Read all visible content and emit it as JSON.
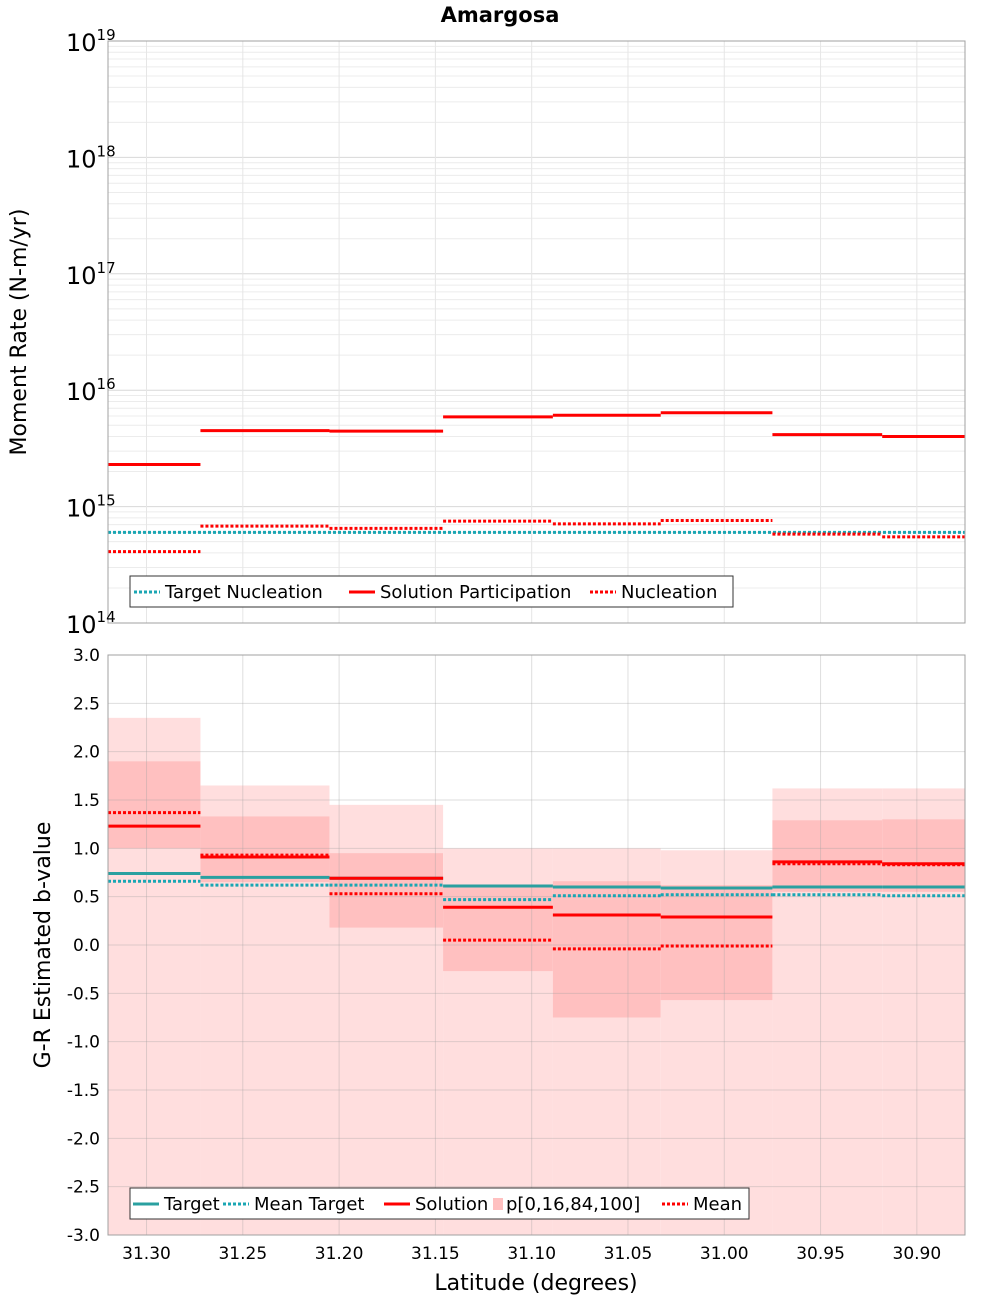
{
  "chart_data": [
    {
      "type": "line",
      "title": "Amargosa",
      "ylabel": "Moment Rate (N-m/yr)",
      "yscale": "log",
      "ylim": [
        100000000000000.0,
        1e+19
      ],
      "xlim": [
        31.32,
        30.875
      ],
      "x_reversed": true,
      "y_tick_labels": [
        {
          "base": "10",
          "exp": "14",
          "value": 100000000000000.0
        },
        {
          "base": "10",
          "exp": "15",
          "value": 1000000000000000.0
        },
        {
          "base": "10",
          "exp": "16",
          "value": 1e+16
        },
        {
          "base": "10",
          "exp": "17",
          "value": 1e+17
        },
        {
          "base": "10",
          "exp": "18",
          "value": 1e+18
        },
        {
          "base": "10",
          "exp": "19",
          "value": 1e+19
        }
      ],
      "grid": true,
      "legend_position": "bottom-left",
      "series": [
        {
          "name": "Target Nucleation",
          "color": "#1aa6b3",
          "style": "dotted",
          "segments": [
            [
              31.32,
              30.875,
              600000000000000.0
            ]
          ]
        },
        {
          "name": "Solution Participation",
          "color": "#ff0000",
          "style": "solid",
          "segments": [
            [
              31.32,
              31.272,
              2300000000000000.0
            ],
            [
              31.272,
              31.205,
              4500000000000000.0
            ],
            [
              31.205,
              31.146,
              4450000000000000.0
            ],
            [
              31.146,
              31.089,
              5900000000000000.0
            ],
            [
              31.089,
              31.033,
              6100000000000000.0
            ],
            [
              31.033,
              30.975,
              6400000000000000.0
            ],
            [
              30.975,
              30.918,
              4150000000000000.0
            ],
            [
              30.918,
              30.875,
              4000000000000000.0
            ]
          ]
        },
        {
          "name": "Nucleation",
          "color": "#ff0000",
          "style": "dotted",
          "segments": [
            [
              31.32,
              31.272,
              410000000000000.0
            ],
            [
              31.272,
              31.205,
              680000000000000.0
            ],
            [
              31.205,
              31.146,
              650000000000000.0
            ],
            [
              31.146,
              31.089,
              750000000000000.0
            ],
            [
              31.089,
              31.033,
              710000000000000.0
            ],
            [
              31.033,
              30.975,
              760000000000000.0
            ],
            [
              30.975,
              30.918,
              580000000000000.0
            ],
            [
              30.918,
              30.875,
              550000000000000.0
            ]
          ]
        }
      ]
    },
    {
      "type": "line",
      "title": "",
      "xlabel": "Latitude (degrees)",
      "ylabel": "G-R Estimated b-value",
      "ylim": [
        -3.0,
        3.0
      ],
      "xlim": [
        31.32,
        30.875
      ],
      "x_reversed": true,
      "x_ticks": [
        31.3,
        31.25,
        31.2,
        31.15,
        31.1,
        31.05,
        31.0,
        30.95,
        30.9
      ],
      "x_tick_labels": [
        "31.30",
        "31.25",
        "31.20",
        "31.15",
        "31.10",
        "31.05",
        "31.00",
        "30.95",
        "30.90"
      ],
      "y_ticks": [
        3.0,
        2.5,
        2.0,
        1.5,
        1.0,
        0.5,
        0.0,
        -0.5,
        -1.0,
        -1.5,
        -2.0,
        -2.5,
        -3.0
      ],
      "y_tick_labels": [
        "3.0",
        "2.5",
        "2.0",
        "1.5",
        "1.0",
        "0.5",
        "0.0",
        "-0.5",
        "-1.0",
        "-1.5",
        "-2.0",
        "-2.5",
        "-3.0"
      ],
      "grid": true,
      "legend_position": "bottom-left",
      "bins": [
        [
          31.32,
          31.272
        ],
        [
          31.272,
          31.205
        ],
        [
          31.205,
          31.146
        ],
        [
          31.146,
          31.089
        ],
        [
          31.089,
          31.033
        ],
        [
          31.033,
          30.975
        ],
        [
          30.975,
          30.918
        ],
        [
          30.918,
          30.875
        ]
      ],
      "band_p0_p100": [
        [
          -3.0,
          2.35
        ],
        [
          -3.0,
          1.65
        ],
        [
          -3.0,
          1.45
        ],
        [
          -3.0,
          1.0
        ],
        [
          -3.0,
          1.0
        ],
        [
          -3.0,
          0.98
        ],
        [
          -3.0,
          1.62
        ],
        [
          -3.0,
          1.62
        ]
      ],
      "band_p16_p84": [
        [
          1.0,
          1.9
        ],
        [
          0.65,
          1.33
        ],
        [
          0.18,
          0.95
        ],
        [
          -0.27,
          0.62
        ],
        [
          -0.75,
          0.66
        ],
        [
          -0.57,
          0.62
        ],
        [
          0.55,
          1.29
        ],
        [
          0.55,
          1.3
        ]
      ],
      "series": [
        {
          "name": "Target",
          "color": "#2aa0a0",
          "style": "solid",
          "values": [
            0.74,
            0.7,
            0.69,
            0.61,
            0.6,
            0.59,
            0.6,
            0.6
          ]
        },
        {
          "name": "Mean Target",
          "color": "#1aa6b3",
          "style": "dotted",
          "values": [
            0.66,
            0.62,
            0.62,
            0.47,
            0.51,
            0.52,
            0.52,
            0.51
          ]
        },
        {
          "name": "Solution",
          "color": "#ff0000",
          "style": "solid",
          "values": [
            1.23,
            0.91,
            0.69,
            0.39,
            0.31,
            0.29,
            0.86,
            0.84
          ]
        },
        {
          "name": "p[0,16,84,100]",
          "color": "#ffc0c0",
          "style": "band"
        },
        {
          "name": "Mean",
          "color": "#ff0000",
          "style": "dotted",
          "values": [
            1.37,
            0.93,
            0.53,
            0.05,
            -0.04,
            -0.01,
            0.84,
            0.83
          ]
        }
      ]
    }
  ]
}
